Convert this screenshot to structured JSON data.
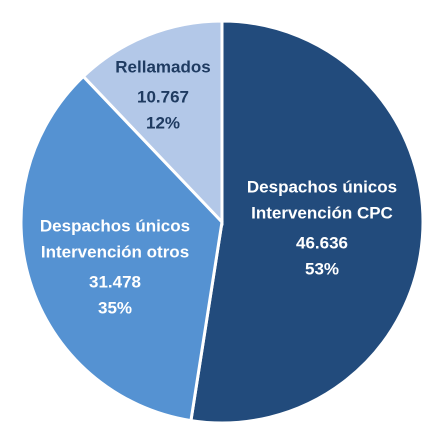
{
  "chart_data": {
    "type": "pie",
    "categories": [
      [
        "Despachos únicos",
        "Intervención CPC"
      ],
      [
        "Despachos únicos",
        "Intervención otros"
      ],
      [
        "Rellamados"
      ]
    ],
    "values": [
      46636,
      31478,
      10767
    ],
    "value_labels": [
      "46.636",
      "31.478",
      "10.767"
    ],
    "percentages": [
      53,
      35,
      12
    ],
    "percentage_labels": [
      "53%",
      "35%",
      "12%"
    ],
    "colors": [
      "#224b7c",
      "#5592d2",
      "#b3c8e8"
    ],
    "label_colors": [
      "#ffffff",
      "#ffffff",
      "#1f3b61"
    ]
  }
}
